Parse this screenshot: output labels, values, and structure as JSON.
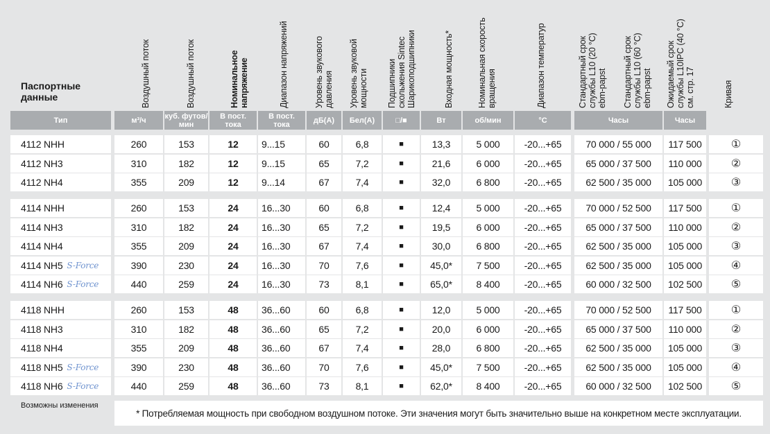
{
  "title": [
    "Паспортные",
    "данные"
  ],
  "headers": [
    {
      "lines": [
        "Воздушный поток"
      ]
    },
    {
      "lines": [
        "Воздушный поток"
      ]
    },
    {
      "lines": [
        "Номинальное",
        "напряжение"
      ],
      "bold": true
    },
    {
      "lines": [
        "Диапазон напряжений"
      ]
    },
    {
      "lines": [
        "Уровень звукового",
        "давления"
      ]
    },
    {
      "lines": [
        "Уровень звуковой",
        "мощности"
      ]
    },
    {
      "lines": [
        "Подшипники",
        "скольжения Sintec",
        "Шарикоподшипники"
      ]
    },
    {
      "lines": [
        "Входная мощность*"
      ]
    },
    {
      "lines": [
        "Номинальная скорость",
        "вращения"
      ]
    },
    {
      "lines": [
        "Диапазон температур"
      ]
    },
    {
      "lines": [
        "Стандартный срок",
        "службы L10 (20 °C)",
        "ebm-papst"
      ]
    },
    {
      "lines": [
        "Стандартный срок",
        "службы L10 (60 °C)",
        "ebm-papst"
      ]
    },
    {
      "lines": [
        "Ожидаемый срок",
        "службы L10IPC (40 °C)",
        "см. стр. 17"
      ]
    },
    {
      "lines": [
        "Кривая"
      ]
    }
  ],
  "units": [
    {
      "col": 0,
      "lines": [
        "Тип"
      ]
    },
    {
      "col": 1,
      "lines": [
        "м³/ч"
      ]
    },
    {
      "col": 2,
      "lines": [
        "куб. футов/",
        "мин"
      ]
    },
    {
      "col": 3,
      "lines": [
        "В пост.",
        "тока"
      ]
    },
    {
      "col": 4,
      "lines": [
        "В пост.",
        "тока"
      ]
    },
    {
      "col": 5,
      "lines": [
        "дБ(А)"
      ]
    },
    {
      "col": 6,
      "lines": [
        "Бел(А)"
      ]
    },
    {
      "col": 7,
      "lines": [
        "□/■"
      ]
    },
    {
      "col": 8,
      "lines": [
        "Вт"
      ]
    },
    {
      "col": 9,
      "lines": [
        "об/мин"
      ]
    },
    {
      "col": 10,
      "lines": [
        "°С"
      ]
    },
    {
      "col": 11,
      "lines": [
        "Часы"
      ]
    },
    {
      "col": 12,
      "lines": [
        "Часы"
      ]
    }
  ],
  "groups": [
    [
      {
        "cells": [
          "4112 NHH",
          "260",
          "153",
          "12",
          "9...15",
          "60",
          "6,8",
          "■",
          "13,3",
          "5 000",
          "-20...+65",
          "70 000 / 55 000",
          "117 500",
          "①"
        ]
      },
      {
        "cells": [
          "4112 NH3",
          "310",
          "182",
          "12",
          "9...15",
          "65",
          "7,2",
          "■",
          "21,6",
          "6 000",
          "-20...+65",
          "65 000 / 37 500",
          "110 000",
          "②"
        ]
      },
      {
        "cells": [
          "4112 NH4",
          "355",
          "209",
          "12",
          "9...14",
          "67",
          "7,4",
          "■",
          "32,0",
          "6 800",
          "-20...+65",
          "62 500 / 35 000",
          "105 000",
          "③"
        ]
      }
    ],
    [
      {
        "cells": [
          "4114 NHH",
          "260",
          "153",
          "24",
          "16...30",
          "60",
          "6,8",
          "■",
          "12,4",
          "5 000",
          "-20...+65",
          "70 000 / 52 500",
          "117 500",
          "①"
        ]
      },
      {
        "cells": [
          "4114 NH3",
          "310",
          "182",
          "24",
          "16...30",
          "65",
          "7,2",
          "■",
          "19,5",
          "6 000",
          "-20...+65",
          "65 000 / 37 500",
          "110 000",
          "②"
        ]
      },
      {
        "cells": [
          "4114 NH4",
          "355",
          "209",
          "24",
          "16...30",
          "67",
          "7,4",
          "■",
          "30,0",
          "6 800",
          "-20...+65",
          "62 500 / 35 000",
          "105 000",
          "③"
        ]
      },
      {
        "cells": [
          "4114 NH5",
          "390",
          "230",
          "24",
          "16...30",
          "70",
          "7,6",
          "■",
          "45,0*",
          "7 500",
          "-20...+65",
          "62 500 / 35 000",
          "105 000",
          "④"
        ],
        "badge": "S-Force"
      },
      {
        "cells": [
          "4114 NH6",
          "440",
          "259",
          "24",
          "16...30",
          "73",
          "8,1",
          "■",
          "65,0*",
          "8 400",
          "-20...+65",
          "60 000 / 32 500",
          "102 500",
          "⑤"
        ],
        "badge": "S-Force"
      }
    ],
    [
      {
        "cells": [
          "4118 NHH",
          "260",
          "153",
          "48",
          "36...60",
          "60",
          "6,8",
          "■",
          "12,0",
          "5 000",
          "-20...+65",
          "70 000 / 52 500",
          "117 500",
          "①"
        ]
      },
      {
        "cells": [
          "4118 NH3",
          "310",
          "182",
          "48",
          "36...60",
          "65",
          "7,2",
          "■",
          "20,0",
          "6 000",
          "-20...+65",
          "65 000 / 37 500",
          "110 000",
          "②"
        ]
      },
      {
        "cells": [
          "4118 NH4",
          "355",
          "209",
          "48",
          "36...60",
          "67",
          "7,4",
          "■",
          "28,0",
          "6 800",
          "-20...+65",
          "62 500 / 35 000",
          "105 000",
          "③"
        ]
      },
      {
        "cells": [
          "4118 NH5",
          "390",
          "230",
          "48",
          "36...60",
          "70",
          "7,6",
          "■",
          "45,0*",
          "7 500",
          "-20...+65",
          "62 500 / 35 000",
          "105 000",
          "④"
        ],
        "badge": "S-Force"
      },
      {
        "cells": [
          "4118 NH6",
          "440",
          "259",
          "48",
          "36...60",
          "73",
          "8,1",
          "■",
          "62,0*",
          "8 400",
          "-20...+65",
          "60 000 / 32 500",
          "102 500",
          "⑤"
        ],
        "badge": "S-Force"
      }
    ]
  ],
  "note": "Возможны изменения",
  "footnote": "* Потребляемая мощность при свободном воздушном потоке. Эти значения могут быть значительно выше на конкретном месте эксплуатации."
}
